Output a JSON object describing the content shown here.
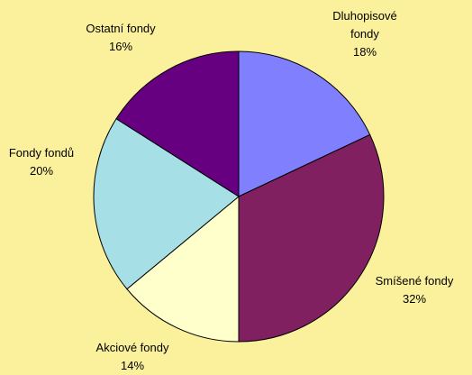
{
  "chart_data": {
    "type": "pie",
    "categories": [
      "Dluhopisové fondy",
      "Smíšené fondy",
      "Akciové fondy",
      "Fondy fondů",
      "Ostatní fondy"
    ],
    "values": [
      18,
      32,
      14,
      20,
      16
    ],
    "value_labels": [
      "18%",
      "32%",
      "14%",
      "20%",
      "16%"
    ],
    "colors": [
      "#8080ff",
      "#802060",
      "#ffffcc",
      "#a6e0e6",
      "#660080"
    ]
  }
}
